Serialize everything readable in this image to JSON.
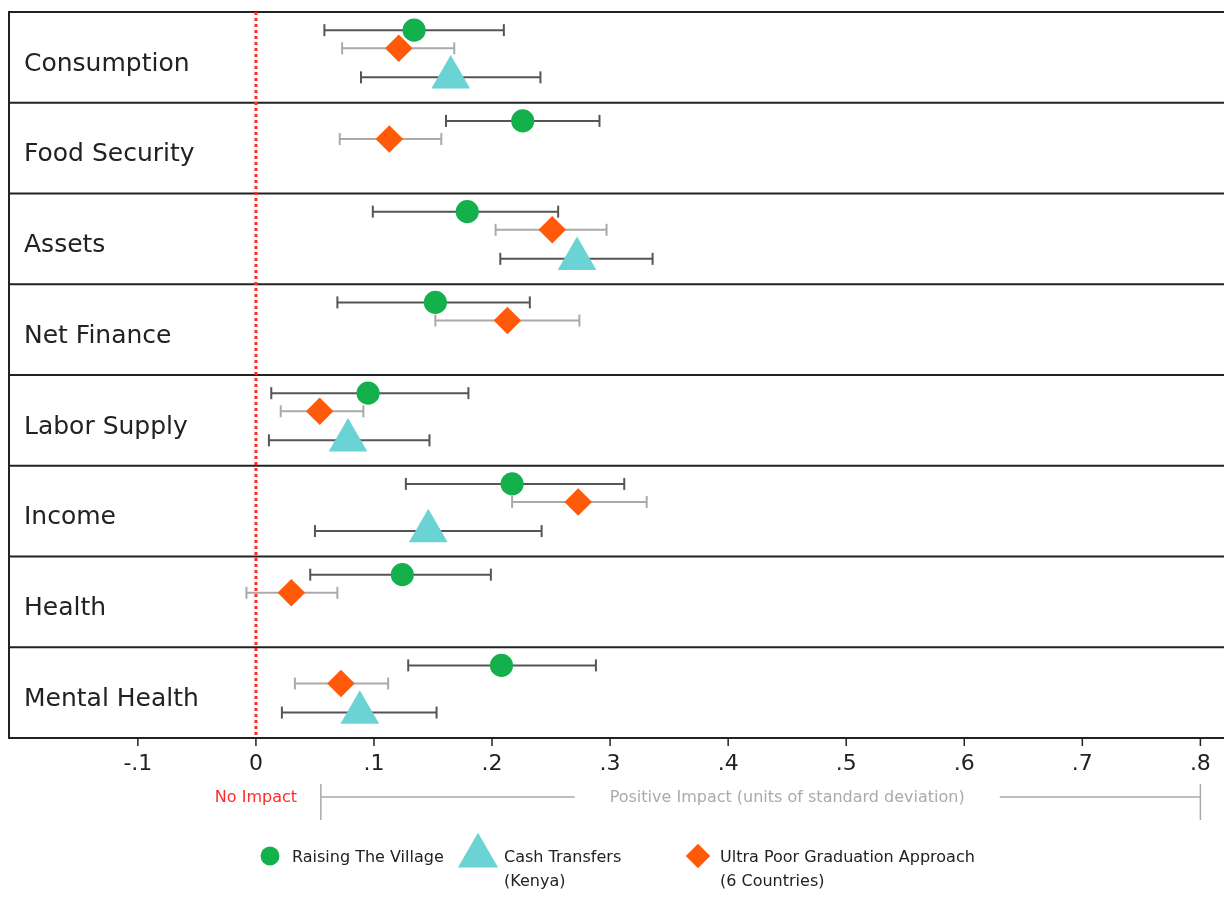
{
  "chart_data": {
    "type": "scatter",
    "orientation": "horizontal",
    "categories": [
      "Consumption",
      "Food Security",
      "Assets",
      "Net Finance",
      "Labor Supply",
      "Income",
      "Health",
      "Mental Health"
    ],
    "xlabel": "Positive Impact (units of standard deviation)",
    "xlim": [
      -0.21,
      0.82
    ],
    "xticks": [
      {
        "value": -0.1,
        "label": "-.1"
      },
      0,
      {
        "value": 0.1,
        "label": ".1"
      },
      {
        "value": 0.2,
        "label": ".2"
      },
      {
        "value": 0.3,
        "label": ".3"
      },
      {
        "value": 0.4,
        "label": ".4"
      },
      {
        "value": 0.5,
        "label": ".5"
      },
      {
        "value": 0.6,
        "label": ".6"
      },
      {
        "value": 0.7,
        "label": ".7"
      },
      {
        "value": 0.8,
        "label": ".8"
      }
    ],
    "ref_lines": [
      {
        "axis": "x",
        "value": 0,
        "label": "No Impact",
        "color": "#ff2a2a",
        "line_style": "dotted"
      }
    ],
    "legend": "bottom",
    "grid": false,
    "series": [
      {
        "name": "Raising The Village",
        "color": "#14b04c",
        "marker": "circle",
        "values": [
          0.134,
          0.226,
          0.179,
          0.152,
          0.095,
          0.217,
          0.124,
          0.208
        ],
        "errors": [
          [
            0.058,
            0.21
          ],
          [
            0.161,
            0.291
          ],
          [
            0.099,
            0.256
          ],
          [
            0.069,
            0.232
          ],
          [
            0.013,
            0.18
          ],
          [
            0.127,
            0.312
          ],
          [
            0.046,
            0.199
          ],
          [
            0.129,
            0.288
          ]
        ]
      },
      {
        "name": "Cash Transfers (Kenya)",
        "color": "#6bd3d4",
        "marker": "triangle",
        "values": [
          0.165,
          null,
          0.272,
          null,
          0.078,
          0.146,
          null,
          0.088
        ],
        "errors": [
          [
            0.089,
            0.241
          ],
          null,
          [
            0.207,
            0.336
          ],
          null,
          [
            0.011,
            0.147
          ],
          [
            0.05,
            0.242
          ],
          null,
          [
            0.022,
            0.153
          ]
        ]
      },
      {
        "name": "Ultra Poor Graduation Approach (6 Countries)",
        "color": "#ff5a0a",
        "marker": "diamond",
        "values": [
          0.121,
          0.113,
          0.251,
          0.213,
          0.054,
          0.273,
          0.03,
          0.072
        ],
        "errors": [
          [
            0.073,
            0.168
          ],
          [
            0.071,
            0.157
          ],
          [
            0.203,
            0.297
          ],
          [
            0.152,
            0.274
          ],
          [
            0.021,
            0.091
          ],
          [
            0.217,
            0.331
          ],
          [
            -0.008,
            0.069
          ],
          [
            0.033,
            0.112
          ]
        ]
      }
    ]
  }
}
